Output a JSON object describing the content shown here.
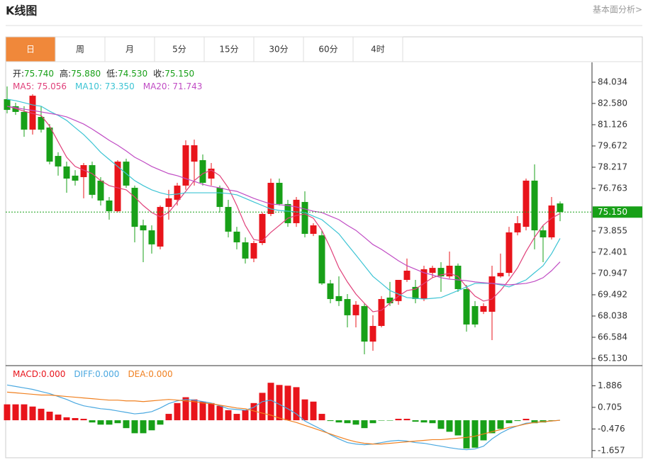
{
  "header": {
    "title": "K线图",
    "link": "基本面分析>"
  },
  "tabs": [
    "日",
    "周",
    "月",
    "5分",
    "15分",
    "30分",
    "60分",
    "4时"
  ],
  "active_tab": 0,
  "chart_data": [
    {
      "type": "candlestick",
      "info": [
        {
          "label": "开:",
          "value": "75.740"
        },
        {
          "label": "高:",
          "value": "75.880"
        },
        {
          "label": "低:",
          "value": "74.530"
        },
        {
          "label": "收:",
          "value": "75.150"
        }
      ],
      "up_color": "#e8141b",
      "down_color": "#18a018",
      "open": [
        82.87,
        82.39,
        82.0,
        80.79,
        81.66,
        80.93,
        78.99,
        78.27,
        77.64,
        77.54,
        78.36,
        77.3,
        75.94,
        75.21,
        78.6,
        76.81,
        74.24,
        73.9,
        72.79,
        75.5,
        75.99,
        76.96,
        78.6,
        78.7,
        77.44,
        76.81,
        75.5,
        73.81,
        73.08,
        71.97,
        73.03,
        75.02,
        77.15,
        75.7,
        74.39,
        75.84,
        73.66,
        73.56,
        70.27,
        69.4,
        69.2,
        68.09,
        68.72,
        66.29,
        67.36,
        69.3,
        69.06,
        70.51,
        70.03,
        69.2,
        70.99,
        71.33,
        70.75,
        71.48,
        69.88,
        68.72,
        68.33,
        68.33,
        70.75,
        70.99,
        73.76,
        74.14,
        77.3,
        73.9,
        73.42,
        75.74
      ],
      "high": [
        83.74,
        82.63,
        82.39,
        83.21,
        82.39,
        81.17,
        79.24,
        78.6,
        78.02,
        78.51,
        78.6,
        77.54,
        76.18,
        78.7,
        78.8,
        76.96,
        74.63,
        74.24,
        75.6,
        76.67,
        77.15,
        80.06,
        80.11,
        79.09,
        78.51,
        76.96,
        75.99,
        74.14,
        73.42,
        73.18,
        75.12,
        77.44,
        77.44,
        75.99,
        76.18,
        76.57,
        74.39,
        73.9,
        70.51,
        70.75,
        69.54,
        69.06,
        68.91,
        68.09,
        69.4,
        70.37,
        70.51,
        71.97,
        70.51,
        71.48,
        71.48,
        71.72,
        72.45,
        71.63,
        70.17,
        69.06,
        68.91,
        71.48,
        72.31,
        74.14,
        74.87,
        77.44,
        78.41,
        74.24,
        76.18,
        75.88
      ],
      "low": [
        81.9,
        81.8,
        80.3,
        80.45,
        80.59,
        78.41,
        77.64,
        76.47,
        76.96,
        76.09,
        76.09,
        75.6,
        74.63,
        75.12,
        76.81,
        73.08,
        71.72,
        72.31,
        72.6,
        74.63,
        75.6,
        76.67,
        76.96,
        76.96,
        76.96,
        75.12,
        73.42,
        72.6,
        71.63,
        71.72,
        72.89,
        74.87,
        75.6,
        74.14,
        74.14,
        73.42,
        73.51,
        70.17,
        68.91,
        68.72,
        67.26,
        67.26,
        65.42,
        65.66,
        67.26,
        68.72,
        68.81,
        70.37,
        68.91,
        69.06,
        70.66,
        69.69,
        70.61,
        69.69,
        66.97,
        67.26,
        68.18,
        66.39,
        70.66,
        70.75,
        73.56,
        73.9,
        72.6,
        71.72,
        73.27,
        74.53
      ],
      "close": [
        82.14,
        82.0,
        80.79,
        83.11,
        80.79,
        78.6,
        78.27,
        77.44,
        77.3,
        78.36,
        76.33,
        75.94,
        75.21,
        78.6,
        76.96,
        74.14,
        73.9,
        72.94,
        75.5,
        76.09,
        76.96,
        79.72,
        79.72,
        77.15,
        78.12,
        75.5,
        73.81,
        73.08,
        71.97,
        73.03,
        75.02,
        77.15,
        75.7,
        74.39,
        75.99,
        73.66,
        74.24,
        70.27,
        69.2,
        69.06,
        68.09,
        68.81,
        66.29,
        67.36,
        69.2,
        68.91,
        70.51,
        71.14,
        69.2,
        71.24,
        71.33,
        70.75,
        71.48,
        69.88,
        67.46,
        67.46,
        68.72,
        70.75,
        70.99,
        73.76,
        74.39,
        77.3,
        73.9,
        73.42,
        75.6,
        75.15
      ],
      "series": [
        {
          "legend": "MA5: 75.056",
          "color": "#e0407a",
          "values": [
            82.39,
            82.24,
            82.05,
            81.9,
            81.76,
            81.03,
            79.96,
            78.9,
            78.27,
            78.02,
            77.78,
            77.3,
            76.96,
            76.81,
            76.67,
            76.18,
            75.6,
            75.12,
            74.82,
            75.12,
            75.84,
            76.57,
            77.3,
            77.78,
            78.02,
            77.64,
            76.81,
            75.6,
            74.24,
            73.27,
            73.18,
            73.76,
            74.24,
            74.73,
            74.92,
            75.02,
            74.73,
            73.9,
            72.69,
            71.34,
            70.37,
            69.54,
            68.91,
            68.33,
            68.43,
            68.91,
            69.4,
            69.78,
            69.88,
            70.27,
            70.66,
            70.85,
            70.95,
            70.75,
            70.03,
            69.4,
            69.06,
            69.2,
            69.78,
            70.51,
            71.34,
            72.45,
            73.42,
            74.24,
            74.73,
            75.056
          ]
        },
        {
          "legend": "MA10: 73.350",
          "color": "#3cc4d4",
          "values": [
            82.87,
            82.77,
            82.63,
            82.48,
            82.39,
            82.05,
            81.76,
            81.42,
            80.93,
            80.45,
            79.87,
            79.24,
            78.75,
            78.27,
            77.78,
            77.3,
            76.96,
            76.67,
            76.47,
            76.33,
            76.38,
            76.47,
            76.47,
            76.47,
            76.47,
            76.47,
            76.42,
            76.33,
            76.09,
            75.84,
            75.6,
            75.36,
            75.26,
            75.21,
            75.16,
            75.12,
            74.87,
            74.63,
            74.15,
            73.66,
            72.93,
            72.21,
            71.48,
            70.75,
            70.27,
            69.78,
            69.54,
            69.3,
            69.25,
            69.2,
            69.25,
            69.3,
            69.54,
            69.78,
            70.03,
            70.27,
            70.27,
            70.27,
            70.17,
            70.03,
            70.27,
            70.51,
            71.0,
            71.48,
            72.3,
            73.35
          ]
        },
        {
          "legend": "MA20: 71.743",
          "color": "#c04cc4",
          "values": [
            82.39,
            82.29,
            82.19,
            82.1,
            82.0,
            81.9,
            81.8,
            81.66,
            81.42,
            81.17,
            80.83,
            80.45,
            80.06,
            79.72,
            79.33,
            78.9,
            78.6,
            78.27,
            78.02,
            77.78,
            77.64,
            77.44,
            77.25,
            77.05,
            76.91,
            76.81,
            76.67,
            76.57,
            76.33,
            76.09,
            75.89,
            75.7,
            75.65,
            75.6,
            75.5,
            75.36,
            75.21,
            75.12,
            74.87,
            74.63,
            74.24,
            73.9,
            73.42,
            72.93,
            72.6,
            72.21,
            71.82,
            71.48,
            71.24,
            71.0,
            70.85,
            70.66,
            70.56,
            70.51,
            70.46,
            70.37,
            70.32,
            70.27,
            70.22,
            70.17,
            70.22,
            70.27,
            70.41,
            70.66,
            71.14,
            71.743
          ]
        }
      ],
      "last_price": {
        "value": 75.15,
        "label": "75.150",
        "color": "#18a018"
      },
      "ylim": [
        64.645,
        85.391
      ],
      "yticks": [
        84.034,
        {
          "value": 82.58,
          "label": "82.580"
        },
        81.126,
        79.672,
        78.217,
        76.763,
        73.855,
        72.401,
        70.947,
        69.492,
        68.038,
        66.584,
        {
          "value": 65.13,
          "label": "65.130"
        }
      ]
    },
    {
      "type": "macd",
      "legend": "MACD:0.000",
      "legend_color": "#e8141b",
      "up_color": "#e8141b",
      "down_color": "#18a018",
      "values": [
        0.87,
        0.87,
        0.87,
        0.75,
        0.63,
        0.47,
        0.31,
        0.16,
        0.12,
        0.08,
        -0.12,
        -0.24,
        -0.24,
        -0.16,
        -0.43,
        -0.71,
        -0.71,
        -0.55,
        -0.24,
        0.35,
        0.94,
        1.26,
        1.14,
        1.02,
        0.94,
        0.79,
        0.55,
        0.35,
        0.55,
        0.94,
        1.5,
        2.05,
        1.93,
        1.89,
        1.81,
        1.14,
        1.02,
        0.35,
        -0.04,
        -0.12,
        -0.16,
        -0.24,
        -0.43,
        -0.16,
        -0.02,
        -0.02,
        0.08,
        0.08,
        -0.08,
        -0.12,
        -0.16,
        -0.47,
        -0.63,
        -0.83,
        -1.54,
        -1.5,
        -1.1,
        -0.71,
        -0.47,
        -0.16,
        -0.04,
        0.08,
        -0.16,
        -0.12,
        -0.02,
        0
      ],
      "series": [
        {
          "legend": "DIFF:0.000",
          "color": "#4aa8e0",
          "values": [
            1.93,
            1.85,
            1.77,
            1.69,
            1.57,
            1.46,
            1.3,
            1.14,
            0.94,
            0.79,
            0.71,
            0.63,
            0.59,
            0.51,
            0.43,
            0.35,
            0.39,
            0.47,
            0.67,
            0.91,
            1.06,
            1.14,
            1.1,
            1.02,
            0.94,
            0.79,
            0.63,
            0.59,
            0.55,
            0.71,
            1.02,
            1.1,
            0.87,
            0.63,
            0.35,
            -0.04,
            -0.28,
            -0.51,
            -0.79,
            -1.02,
            -1.22,
            -1.3,
            -1.34,
            -1.3,
            -1.22,
            -1.14,
            -1.1,
            -1.14,
            -1.22,
            -1.26,
            -1.34,
            -1.42,
            -1.5,
            -1.57,
            -1.61,
            -1.57,
            -1.42,
            -1.02,
            -0.71,
            -0.47,
            -0.31,
            -0.16,
            -0.12,
            -0.08,
            -0.04,
            0
          ]
        },
        {
          "legend": "DEA:0.000",
          "color": "#f08020",
          "values": [
            1.54,
            1.5,
            1.46,
            1.42,
            1.38,
            1.38,
            1.34,
            1.3,
            1.26,
            1.22,
            1.18,
            1.14,
            1.1,
            1.1,
            1.06,
            1.06,
            1.02,
            1.06,
            1.1,
            1.14,
            1.1,
            1.06,
            1.02,
            0.94,
            0.91,
            0.83,
            0.75,
            0.67,
            0.63,
            0.51,
            0.39,
            0.28,
            0.12,
            0,
            -0.12,
            -0.28,
            -0.43,
            -0.59,
            -0.75,
            -0.91,
            -1.06,
            -1.18,
            -1.26,
            -1.3,
            -1.3,
            -1.26,
            -1.22,
            -1.18,
            -1.14,
            -1.1,
            -1.06,
            -1.06,
            -1.02,
            -0.98,
            -0.94,
            -0.87,
            -0.75,
            -0.63,
            -0.51,
            -0.39,
            -0.31,
            -0.2,
            -0.12,
            -0.08,
            -0.04,
            0
          ]
        }
      ],
      "ylim": [
        -2.051,
        2.988
      ],
      "yticks": [
        1.886,
        0.705,
        -0.476,
        -1.657
      ]
    }
  ]
}
